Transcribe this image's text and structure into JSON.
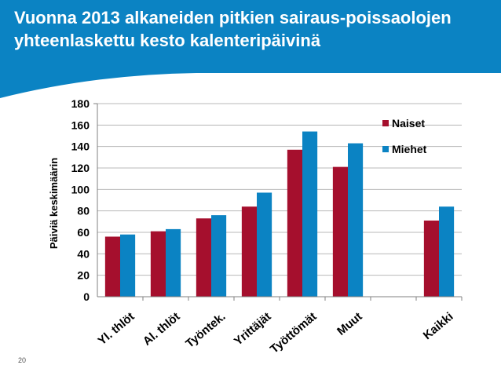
{
  "slide": {
    "title": "Vuonna 2013 alkaneiden pitkien sairaus-poissaolojen yhteenlaskettu kesto kalenteripäivinä",
    "page_number": "20",
    "header_color": "#0b83c3"
  },
  "chart_data": {
    "type": "bar",
    "title": "",
    "xlabel": "",
    "ylabel": "Päiviä keskimäärin",
    "ylim": [
      0,
      180
    ],
    "yticks": [
      0,
      20,
      40,
      60,
      80,
      100,
      120,
      140,
      160,
      180
    ],
    "categories": [
      "Yl. thlöt",
      "Al. thlöt",
      "Työntek.",
      "Yrittäjät",
      "Työttömät",
      "Muut",
      "",
      "Kaikki"
    ],
    "series": [
      {
        "name": "Naiset",
        "color": "#a50f2d",
        "values": [
          56,
          61,
          73,
          84,
          137,
          121,
          null,
          71
        ]
      },
      {
        "name": "Miehet",
        "color": "#0b83c3",
        "values": [
          58,
          63,
          76,
          97,
          154,
          143,
          null,
          84
        ]
      }
    ],
    "legend_position": "right",
    "grid": true
  }
}
